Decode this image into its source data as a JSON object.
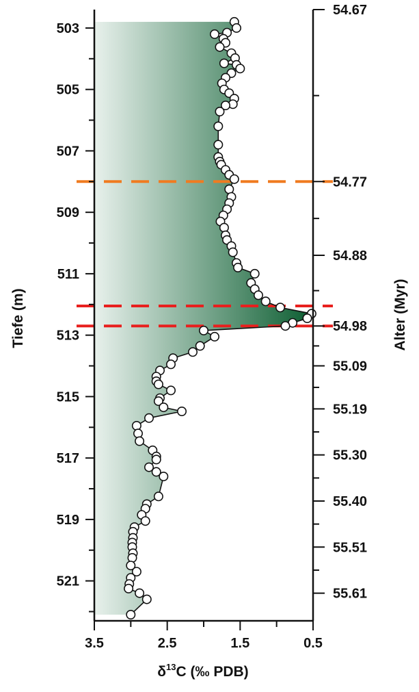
{
  "chart_data": {
    "type": "line",
    "x_axis": {
      "label_main": "δ",
      "label_sup": "13",
      "label_rest": "C (‰ PDB)",
      "range": [
        3.5,
        0.5
      ],
      "reversed": true,
      "ticks": [
        "3.5",
        "2.5",
        "1.5",
        "0.5"
      ],
      "tick_values": [
        3.5,
        2.5,
        1.5,
        0.5
      ]
    },
    "y_left_axis": {
      "label": "Tiefe (m)",
      "range": [
        502.4,
        522.3
      ],
      "reversed": true,
      "ticks": [
        "503",
        "505",
        "507",
        "509",
        "511",
        "513",
        "515",
        "517",
        "519",
        "521"
      ],
      "tick_values": [
        503,
        505,
        507,
        509,
        511,
        513,
        515,
        517,
        519,
        521
      ]
    },
    "y_right_axis": {
      "label": "Alter (Myr)",
      "ticks": [
        "54.67",
        "54.77",
        "54.88",
        "54.98",
        "55.09",
        "55.19",
        "55.30",
        "55.40",
        "55.51",
        "55.61"
      ],
      "tick_depths": [
        502.4,
        508.0,
        510.4,
        512.7,
        514.0,
        515.4,
        516.9,
        518.4,
        519.9,
        521.4
      ]
    },
    "reference_lines": [
      {
        "depth": 508.0,
        "color": "#f07b20"
      },
      {
        "depth": 512.05,
        "color": "#e8201e"
      },
      {
        "depth": 512.7,
        "color": "#e8201e"
      }
    ],
    "fill_gradient": {
      "start": "#e8f1ec",
      "end": "#0d5e32"
    },
    "series": [
      {
        "points": [
          {
            "x": 1.58,
            "y": 502.8
          },
          {
            "x": 1.55,
            "y": 503.0
          },
          {
            "x": 1.68,
            "y": 503.15
          },
          {
            "x": 1.85,
            "y": 503.2
          },
          {
            "x": 1.73,
            "y": 503.35
          },
          {
            "x": 1.7,
            "y": 503.48
          },
          {
            "x": 1.78,
            "y": 503.62
          },
          {
            "x": 1.62,
            "y": 503.82
          },
          {
            "x": 1.57,
            "y": 503.98
          },
          {
            "x": 1.72,
            "y": 504.15
          },
          {
            "x": 1.55,
            "y": 504.2
          },
          {
            "x": 1.5,
            "y": 504.32
          },
          {
            "x": 1.62,
            "y": 504.47
          },
          {
            "x": 1.7,
            "y": 504.62
          },
          {
            "x": 1.75,
            "y": 504.8
          },
          {
            "x": 1.72,
            "y": 505.0
          },
          {
            "x": 1.65,
            "y": 505.12
          },
          {
            "x": 1.58,
            "y": 505.3
          },
          {
            "x": 1.6,
            "y": 505.48
          },
          {
            "x": 1.7,
            "y": 505.52
          },
          {
            "x": 1.78,
            "y": 505.72
          },
          {
            "x": 1.8,
            "y": 506.2
          },
          {
            "x": 1.8,
            "y": 506.8
          },
          {
            "x": 1.8,
            "y": 507.2
          },
          {
            "x": 1.78,
            "y": 507.35
          },
          {
            "x": 1.76,
            "y": 507.45
          },
          {
            "x": 1.7,
            "y": 507.62
          },
          {
            "x": 1.65,
            "y": 507.78
          },
          {
            "x": 1.58,
            "y": 507.92
          },
          {
            "x": 1.65,
            "y": 508.25
          },
          {
            "x": 1.62,
            "y": 508.5
          },
          {
            "x": 1.65,
            "y": 508.7
          },
          {
            "x": 1.68,
            "y": 508.9
          },
          {
            "x": 1.73,
            "y": 509.1
          },
          {
            "x": 1.77,
            "y": 509.3
          },
          {
            "x": 1.72,
            "y": 509.5
          },
          {
            "x": 1.7,
            "y": 509.75
          },
          {
            "x": 1.68,
            "y": 509.9
          },
          {
            "x": 1.62,
            "y": 510.1
          },
          {
            "x": 1.6,
            "y": 510.3
          },
          {
            "x": 1.55,
            "y": 510.65
          },
          {
            "x": 1.53,
            "y": 510.8
          },
          {
            "x": 1.3,
            "y": 511.0
          },
          {
            "x": 1.35,
            "y": 511.3
          },
          {
            "x": 1.3,
            "y": 511.5
          },
          {
            "x": 1.25,
            "y": 511.7
          },
          {
            "x": 1.15,
            "y": 511.9
          },
          {
            "x": 0.95,
            "y": 512.1
          },
          {
            "x": 0.52,
            "y": 512.3
          },
          {
            "x": 0.58,
            "y": 512.45
          },
          {
            "x": 0.78,
            "y": 512.6
          },
          {
            "x": 0.88,
            "y": 512.7
          },
          {
            "x": 2.0,
            "y": 512.85
          },
          {
            "x": 1.85,
            "y": 513.05
          },
          {
            "x": 2.05,
            "y": 513.35
          },
          {
            "x": 2.15,
            "y": 513.55
          },
          {
            "x": 2.42,
            "y": 513.75
          },
          {
            "x": 2.45,
            "y": 513.95
          },
          {
            "x": 2.6,
            "y": 514.15
          },
          {
            "x": 2.65,
            "y": 514.35
          },
          {
            "x": 2.65,
            "y": 514.5
          },
          {
            "x": 2.62,
            "y": 514.6
          },
          {
            "x": 2.45,
            "y": 514.8
          },
          {
            "x": 2.6,
            "y": 515.05
          },
          {
            "x": 2.62,
            "y": 515.15
          },
          {
            "x": 2.55,
            "y": 515.35
          },
          {
            "x": 2.3,
            "y": 515.48
          },
          {
            "x": 2.75,
            "y": 515.7
          },
          {
            "x": 2.92,
            "y": 515.95
          },
          {
            "x": 2.9,
            "y": 516.2
          },
          {
            "x": 2.88,
            "y": 516.45
          },
          {
            "x": 2.7,
            "y": 516.75
          },
          {
            "x": 2.65,
            "y": 516.95
          },
          {
            "x": 2.65,
            "y": 517.05
          },
          {
            "x": 2.75,
            "y": 517.3
          },
          {
            "x": 2.65,
            "y": 517.45
          },
          {
            "x": 2.55,
            "y": 517.6
          },
          {
            "x": 2.62,
            "y": 518.25
          },
          {
            "x": 2.78,
            "y": 518.5
          },
          {
            "x": 2.8,
            "y": 518.65
          },
          {
            "x": 2.85,
            "y": 518.85
          },
          {
            "x": 2.8,
            "y": 519.05
          },
          {
            "x": 2.95,
            "y": 519.25
          },
          {
            "x": 2.97,
            "y": 519.4
          },
          {
            "x": 2.97,
            "y": 519.6
          },
          {
            "x": 2.98,
            "y": 519.75
          },
          {
            "x": 2.98,
            "y": 519.9
          },
          {
            "x": 2.97,
            "y": 520.1
          },
          {
            "x": 2.98,
            "y": 520.25
          },
          {
            "x": 3.0,
            "y": 520.5
          },
          {
            "x": 2.92,
            "y": 520.7
          },
          {
            "x": 3.0,
            "y": 520.9
          },
          {
            "x": 3.02,
            "y": 521.1
          },
          {
            "x": 3.03,
            "y": 521.25
          },
          {
            "x": 2.88,
            "y": 521.4
          },
          {
            "x": 2.78,
            "y": 521.6
          },
          {
            "x": 3.0,
            "y": 522.1
          }
        ]
      }
    ]
  }
}
